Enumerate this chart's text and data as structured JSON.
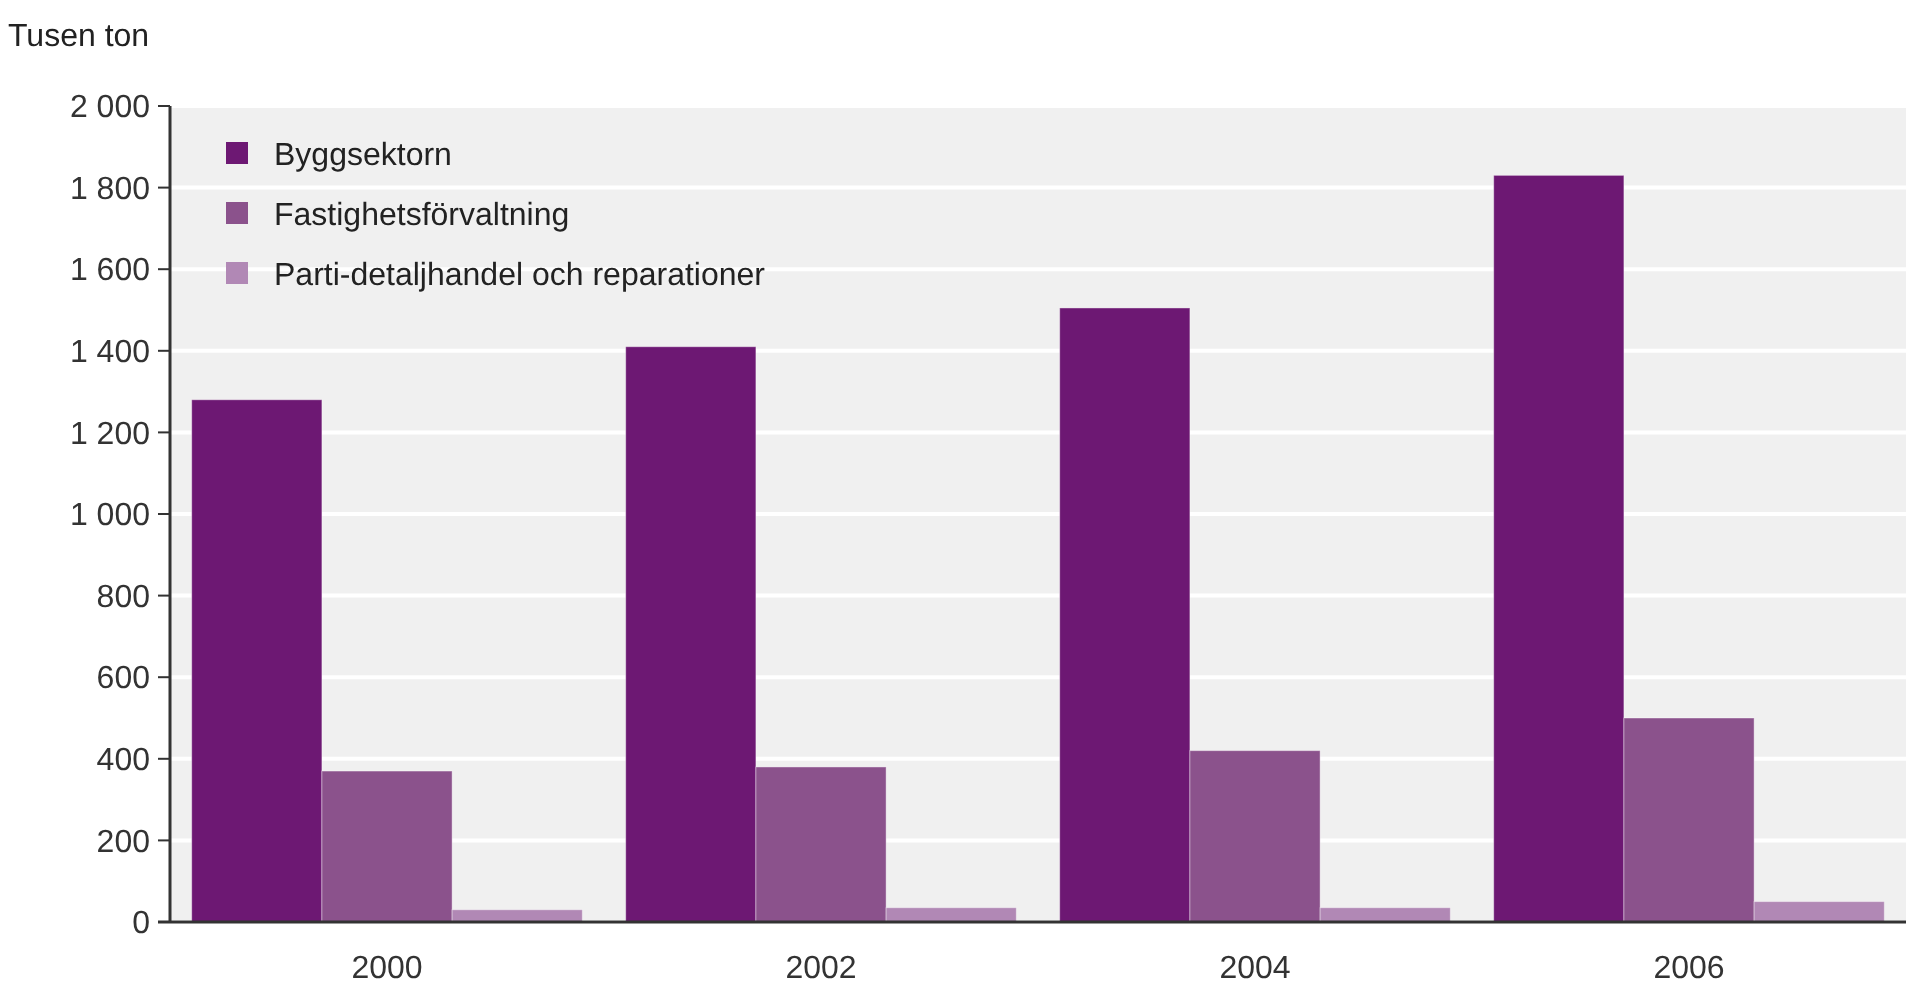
{
  "chart_data": {
    "type": "bar",
    "ylabel": "Tusen ton",
    "categories": [
      "2000",
      "2002",
      "2004",
      "2006"
    ],
    "series": [
      {
        "name": "Byggsektorn",
        "color": "#6d1873",
        "values": [
          1280,
          1410,
          1505,
          1830
        ]
      },
      {
        "name": "Fastighetsförvaltning",
        "color": "#8b528c",
        "values": [
          370,
          380,
          420,
          500
        ]
      },
      {
        "name": "Parti-detaljhandel och reparationer",
        "color": "#b188b5",
        "values": [
          30,
          35,
          35,
          50
        ]
      }
    ],
    "ylim": [
      0,
      2000
    ],
    "yticks": [
      0,
      200,
      400,
      600,
      800,
      {
        "value": 1000,
        "label": "1 000"
      },
      {
        "value": 1200,
        "label": "1 200"
      },
      {
        "value": 1400,
        "label": "1 400"
      },
      {
        "value": 1600,
        "label": "1 600"
      },
      {
        "value": 1800,
        "label": "1 800"
      },
      {
        "value": 2000,
        "label": "2 000"
      }
    ],
    "grid": "y",
    "legend": "top left"
  }
}
